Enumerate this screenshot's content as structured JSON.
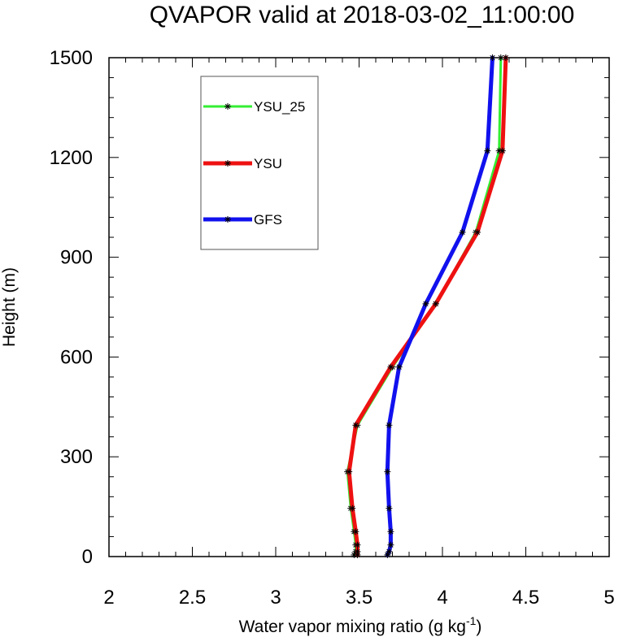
{
  "chart_data": {
    "type": "line",
    "title": "QVAPOR valid at 2018-03-02_11:00:00",
    "xlabel": "Water vapor mixing ratio (g kg",
    "xlabel_sup": "-1",
    "xlabel_end": ")",
    "ylabel": "Height (m)",
    "xlim": [
      2,
      5
    ],
    "ylim": [
      0,
      1500
    ],
    "x_ticks": [
      2,
      2.5,
      3,
      3.5,
      4,
      4.5,
      5
    ],
    "x_tick_labels": [
      "2",
      "2.5",
      "3",
      "3.5",
      "4",
      "4.5",
      "5"
    ],
    "y_ticks": [
      0,
      300,
      600,
      900,
      1200,
      1500
    ],
    "y_tick_labels": [
      "0",
      "300",
      "600",
      "900",
      "1200",
      "1500"
    ],
    "grid": false,
    "legend_position": "top-left",
    "series": [
      {
        "name": "YSU_25",
        "color": "#33ee33",
        "line_width": 3,
        "marker": "asterisk",
        "points": [
          {
            "x": 3.47,
            "y": 5
          },
          {
            "x": 3.48,
            "y": 15
          },
          {
            "x": 3.48,
            "y": 35
          },
          {
            "x": 3.47,
            "y": 75
          },
          {
            "x": 3.45,
            "y": 145
          },
          {
            "x": 3.43,
            "y": 255
          },
          {
            "x": 3.49,
            "y": 395
          },
          {
            "x": 3.7,
            "y": 570
          },
          {
            "x": 3.96,
            "y": 760
          },
          {
            "x": 4.2,
            "y": 975
          },
          {
            "x": 4.34,
            "y": 1220
          },
          {
            "x": 4.35,
            "y": 1500
          }
        ]
      },
      {
        "name": "YSU",
        "color": "#ee1111",
        "line_width": 5,
        "marker": "asterisk",
        "points": [
          {
            "x": 3.49,
            "y": 5
          },
          {
            "x": 3.49,
            "y": 15
          },
          {
            "x": 3.49,
            "y": 35
          },
          {
            "x": 3.48,
            "y": 75
          },
          {
            "x": 3.46,
            "y": 145
          },
          {
            "x": 3.44,
            "y": 255
          },
          {
            "x": 3.48,
            "y": 395
          },
          {
            "x": 3.69,
            "y": 570
          },
          {
            "x": 3.96,
            "y": 760
          },
          {
            "x": 4.21,
            "y": 975
          },
          {
            "x": 4.36,
            "y": 1220
          },
          {
            "x": 4.38,
            "y": 1500
          }
        ]
      },
      {
        "name": "GFS",
        "color": "#1111ee",
        "line_width": 5,
        "marker": "asterisk",
        "points": [
          {
            "x": 3.67,
            "y": 5
          },
          {
            "x": 3.68,
            "y": 15
          },
          {
            "x": 3.69,
            "y": 35
          },
          {
            "x": 3.69,
            "y": 75
          },
          {
            "x": 3.68,
            "y": 145
          },
          {
            "x": 3.67,
            "y": 255
          },
          {
            "x": 3.68,
            "y": 395
          },
          {
            "x": 3.74,
            "y": 570
          },
          {
            "x": 3.9,
            "y": 760
          },
          {
            "x": 4.12,
            "y": 975
          },
          {
            "x": 4.27,
            "y": 1220
          },
          {
            "x": 4.3,
            "y": 1500
          }
        ]
      }
    ]
  }
}
